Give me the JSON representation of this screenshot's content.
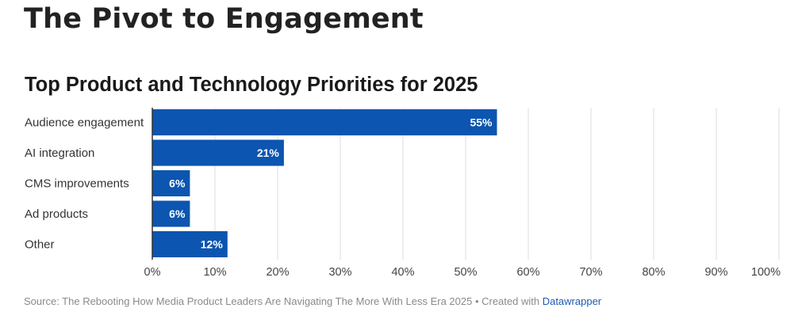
{
  "header": {
    "title": "The Pivot to Engagement"
  },
  "chart_data": {
    "type": "bar",
    "orientation": "horizontal",
    "title": "Top Product and Technology Priorities for 2025",
    "categories": [
      "Audience engagement",
      "AI integration",
      "CMS improvements",
      "Ad products",
      "Other"
    ],
    "values": [
      55,
      21,
      6,
      6,
      12
    ],
    "value_labels": [
      "55%",
      "21%",
      "6%",
      "6%",
      "12%"
    ],
    "xlim": [
      0,
      100
    ],
    "x_ticks": [
      0,
      10,
      20,
      30,
      40,
      50,
      60,
      70,
      80,
      90,
      100
    ],
    "x_tick_labels": [
      "0%",
      "10%",
      "20%",
      "30%",
      "40%",
      "50%",
      "60%",
      "70%",
      "80%",
      "90%",
      "100%"
    ],
    "xlabel": "",
    "ylabel": "",
    "grid": true,
    "bar_color": "#0c55b0",
    "grid_color": "#dddddd",
    "axis_color": "#333333"
  },
  "footer": {
    "source_text": "Source: The Rebooting How Media Product Leaders Are Navigating The More With Less Era 2025 • Created with ",
    "link_label": "Datawrapper"
  }
}
